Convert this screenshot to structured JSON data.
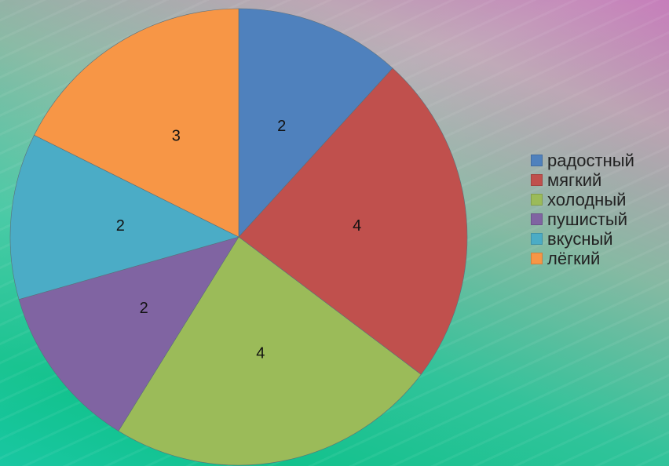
{
  "chart_data": {
    "type": "pie",
    "title": "",
    "categories": [
      "радостный",
      "мягкий",
      "холодный",
      "пушистый",
      "вкусный",
      "лёгкий"
    ],
    "values": [
      2,
      4,
      4,
      2,
      2,
      3
    ],
    "colors": [
      "#4f81bd",
      "#c0504d",
      "#9bbb59",
      "#8064a2",
      "#4bacc6",
      "#f79646"
    ],
    "data_labels": [
      "2",
      "4",
      "4",
      "2",
      "2",
      "3"
    ],
    "start_angle": "12 o'clock",
    "direction": "clockwise",
    "legend_position": "right"
  }
}
